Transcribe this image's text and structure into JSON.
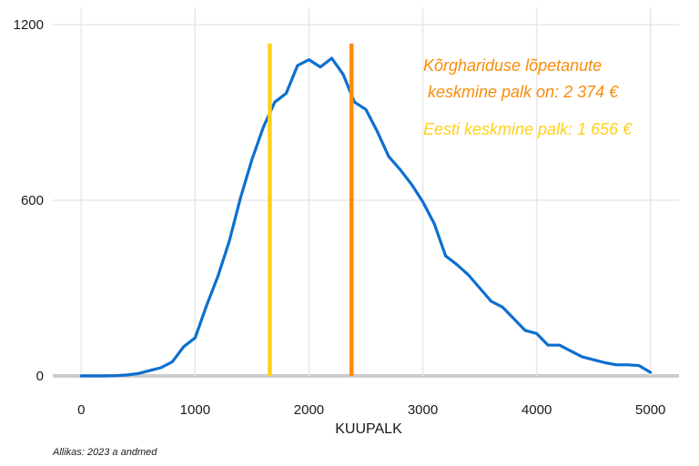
{
  "chart_data": {
    "type": "line",
    "title": "",
    "xlabel": "KUUPALK",
    "ylabel": "",
    "xlim": [
      -250,
      5250
    ],
    "ylim": [
      0,
      1200
    ],
    "xticks": [
      0,
      1000,
      2000,
      3000,
      4000,
      5000
    ],
    "yticks": [
      0,
      600,
      1200
    ],
    "grid": true,
    "series": [
      {
        "color": "#0d6fcf",
        "x": [
          0,
          100,
          200,
          300,
          400,
          500,
          600,
          700,
          800,
          900,
          1000,
          1100,
          1200,
          1300,
          1400,
          1500,
          1600,
          1700,
          1800,
          1900,
          2000,
          2100,
          2200,
          2300,
          2400,
          2500,
          2600,
          2700,
          2800,
          2900,
          3000,
          3100,
          3200,
          3300,
          3400,
          3500,
          3600,
          3700,
          3800,
          3900,
          4000,
          4100,
          4200,
          4300,
          4400,
          4500,
          4600,
          4700,
          4800,
          4900,
          5000
        ],
        "y": [
          0,
          0,
          0,
          1,
          3,
          8,
          18,
          28,
          48,
          100,
          130,
          240,
          340,
          460,
          610,
          740,
          850,
          935,
          965,
          1060,
          1080,
          1055,
          1085,
          1030,
          935,
          910,
          835,
          750,
          705,
          655,
          595,
          520,
          410,
          380,
          345,
          300,
          255,
          235,
          195,
          155,
          145,
          105,
          105,
          85,
          65,
          55,
          45,
          38,
          38,
          35,
          12
        ]
      }
    ],
    "reference_lines": [
      {
        "x": 1656,
        "color": "#ffd11a"
      },
      {
        "x": 2374,
        "color": "#f98c0a"
      }
    ],
    "annotations": [
      {
        "lines": [
          "Kõrghariduse lõpetanute",
          " keskmine palk on: 2 374 €"
        ],
        "color": "#f98c0a"
      },
      {
        "lines": [
          "Eesti keskmine palk: 1 656 €"
        ],
        "color": "#ffd11a"
      }
    ],
    "caption": "Allikas: 2023 a andmed"
  }
}
